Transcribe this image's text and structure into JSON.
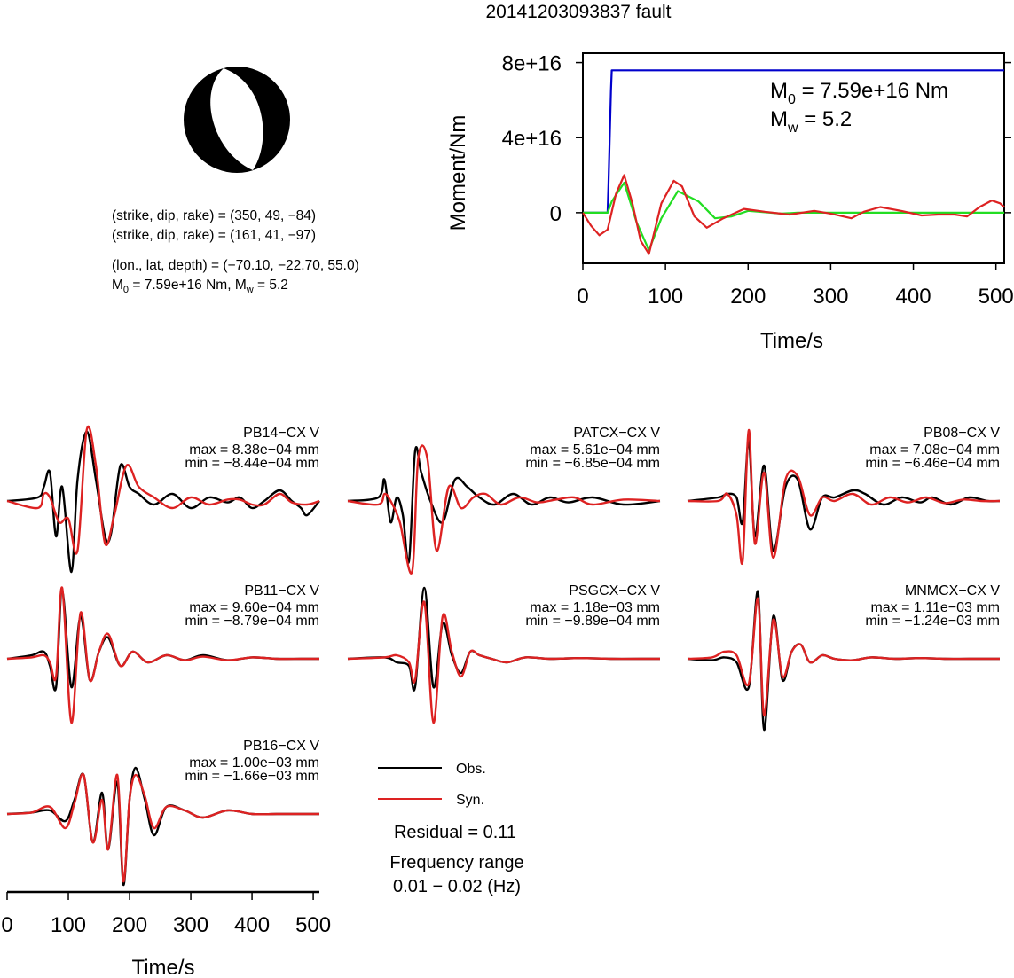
{
  "title": "20141203093837 fault",
  "mechanism": {
    "planes": [
      "(strike, dip, rake) = (350, 49, −84)",
      "(strike, dip, rake) = (161, 41, −97)"
    ],
    "location": "(lon., lat, depth) = (−70.10, −22.70, 55.0)",
    "m0_prefix": "M",
    "m0_sub": "0",
    "m0_value": " = 7.59e+16 Nm, M",
    "mw_sub": "w",
    "mw_value": " = 5.2"
  },
  "chart_data": [
    {
      "type": "line",
      "panel": "moment-rate",
      "xlabel": "Time/s",
      "ylabel": "Moment/Nm",
      "xlim": [
        0,
        510
      ],
      "ylim": [
        -2.7e+16,
        8.5e+16
      ],
      "xticks": [
        "0",
        "100",
        "200",
        "300",
        "400",
        "500"
      ],
      "yticks": [
        "0",
        "4e+16",
        "8e+16"
      ],
      "annotation": {
        "m0_base": "M",
        "m0_sub": "0",
        "m0_rest": " = 7.59e+16 Nm",
        "mw_base": "M",
        "mw_sub": "w",
        "mw_rest": " = 5.2"
      },
      "series": [
        {
          "color": "#0000cc",
          "x": [
            0,
            30,
            31,
            34,
            35,
            510
          ],
          "y": [
            0,
            0,
            1.5e+16,
            6.5e+16,
            7.59e+16,
            7.59e+16
          ]
        },
        {
          "color": "#22dd22",
          "x": [
            0,
            30,
            35,
            50,
            65,
            80,
            95,
            115,
            140,
            160,
            180,
            200,
            240,
            260,
            510
          ],
          "y": [
            0,
            0,
            6000000000000000.0,
            1.6e+16,
            -5000000000000000.0,
            -2e+16,
            -3000000000000000.0,
            1.15e+16,
            6000000000000000.0,
            -3000000000000000.0,
            -2000000000000000.0,
            1000000000000000.0,
            -500000000000000.0,
            0,
            0
          ]
        },
        {
          "color": "#dd2222",
          "x": [
            0,
            10,
            20,
            30,
            40,
            50,
            60,
            70,
            80,
            95,
            110,
            120,
            135,
            150,
            170,
            195,
            220,
            250,
            280,
            300,
            325,
            340,
            360,
            385,
            410,
            430,
            450,
            465,
            480,
            495,
            505,
            510
          ],
          "y": [
            0,
            -7000000000000000.0,
            -1.2e+16,
            -9000000000000000.0,
            1e+16,
            2e+16,
            5000000000000000.0,
            -1.5e+16,
            -2.2e+16,
            5000000000000000.0,
            1.7e+16,
            1.4e+16,
            -2000000000000000.0,
            -8000000000000000.0,
            -3000000000000000.0,
            2000000000000000.0,
            500000000000000.0,
            -1000000000000000.0,
            1000000000000000.0,
            -500000000000000.0,
            -3000000000000000.0,
            500000000000000.0,
            3000000000000000.0,
            1000000000000000.0,
            -1500000000000000.0,
            -1000000000000000.0,
            -1000000000000000.0,
            -2000000000000000.0,
            3000000000000000.0,
            6500000000000000.0,
            5000000000000000.0,
            3000000000000000.0
          ]
        }
      ]
    },
    {
      "type": "line",
      "panel": "waveforms",
      "xlabel": "Time/s",
      "xlim": [
        0,
        510
      ],
      "xticks": [
        "0",
        "100",
        "200",
        "300",
        "400",
        "500"
      ],
      "legend": {
        "obs": "Obs.",
        "syn": "Syn.",
        "obs_color": "#000000",
        "syn_color": "#dd2222"
      },
      "residual": "Residual = 0.11",
      "freq_label": "Frequency range",
      "freq_value": "0.01 − 0.02 (Hz)",
      "stations": [
        {
          "name": "PB14−CX V",
          "max": "max = 8.38e−04 mm",
          "min": "min = −8.44e−04 mm",
          "obs": {
            "x": [
              0,
              50,
              60,
              70,
              80,
              90,
              105,
              115,
              130,
              145,
              160,
              170,
              185,
              200,
              215,
              240,
              270,
              300,
              330,
              360,
              380,
              400,
              420,
              445,
              465,
              480,
              490,
              510
            ],
            "y": [
              0,
              0.05,
              0.2,
              0.4,
              -0.5,
              0.2,
              -1.0,
              0.3,
              0.98,
              0.3,
              -0.5,
              -0.45,
              0.5,
              0.2,
              0.1,
              -0.05,
              0.1,
              -0.1,
              0.05,
              -0.02,
              0.05,
              -0.1,
              0,
              0.15,
              0,
              -0.1,
              -0.2,
              0
            ]
          },
          "syn": {
            "x": [
              0,
              50,
              60,
              70,
              85,
              100,
              115,
              130,
              145,
              160,
              175,
              195,
              215,
              240,
              270,
              300,
              330,
              360,
              380,
              400,
              420,
              445,
              465,
              490,
              510
            ],
            "y": [
              0,
              -0.1,
              0.1,
              0.05,
              -0.3,
              -0.25,
              -0.7,
              1.0,
              0.5,
              -0.6,
              -0.2,
              0.5,
              0.2,
              0.05,
              -0.1,
              0.05,
              -0.05,
              0.02,
              0.02,
              -0.05,
              -0.05,
              0.1,
              -0.02,
              -0.05,
              0
            ]
          }
        },
        {
          "name": "PATCX−CX V",
          "max": "max = 5.61e−04 mm",
          "min": "min = −6.85e−04 mm",
          "obs": {
            "x": [
              0,
              50,
              60,
              70,
              80,
              90,
              100,
              110,
              120,
              135,
              155,
              175,
              195,
              215,
              240,
              270,
              300,
              330,
              360,
              400,
              450,
              510
            ],
            "y": [
              0,
              0.05,
              0.3,
              -0.3,
              0.05,
              -0.2,
              -0.85,
              0.7,
              0.4,
              0.0,
              -0.3,
              0.3,
              0.2,
              0.05,
              -0.05,
              0.1,
              -0.05,
              0.05,
              -0.02,
              0.05,
              -0.05,
              0
            ]
          },
          "syn": {
            "x": [
              0,
              50,
              60,
              70,
              85,
              105,
              115,
              130,
              145,
              165,
              185,
              205,
              225,
              250,
              280,
              310,
              340,
              370,
              400,
              450,
              510
            ],
            "y": [
              0,
              -0.05,
              0.1,
              0.0,
              -0.3,
              -1.0,
              0.6,
              0.6,
              -0.7,
              0.2,
              -0.1,
              0.05,
              0.1,
              -0.05,
              0.05,
              -0.02,
              0.02,
              0.05,
              -0.05,
              0.02,
              0
            ]
          }
        },
        {
          "name": "PB08−CX V",
          "max": "max = 7.08e−04 mm",
          "min": "min = −6.46e−04 mm",
          "obs": {
            "x": [
              0,
              50,
              65,
              80,
              90,
              100,
              110,
              125,
              140,
              160,
              180,
              200,
              220,
              240,
              270,
              290,
              320,
              350,
              380,
              400,
              430,
              460,
              490,
              510
            ],
            "y": [
              0,
              0.05,
              0.1,
              0.05,
              -0.3,
              0.85,
              -0.5,
              0.5,
              -0.7,
              0.2,
              0.3,
              -0.4,
              0.05,
              0.05,
              0.15,
              0.1,
              -0.05,
              0.05,
              -0.02,
              0.05,
              -0.05,
              0.05,
              0,
              0
            ]
          },
          "syn": {
            "x": [
              0,
              50,
              65,
              80,
              90,
              100,
              110,
              125,
              140,
              160,
              180,
              200,
              220,
              240,
              270,
              300,
              330,
              360,
              390,
              420,
              450,
              480,
              510
            ],
            "y": [
              0,
              0,
              0.1,
              -0.2,
              -0.85,
              1.0,
              -0.6,
              0.4,
              -0.8,
              0.3,
              0.35,
              -0.2,
              0.05,
              0,
              0.1,
              -0.05,
              0.05,
              -0.02,
              0.05,
              -0.03,
              0.02,
              0,
              0
            ]
          }
        },
        {
          "name": "PB11−CX V",
          "max": "max = 9.60e−04 mm",
          "min": "min = −8.79e−04 mm",
          "obs": {
            "x": [
              0,
              40,
              60,
              70,
              80,
              90,
              105,
              120,
              135,
              150,
              165,
              185,
              205,
              230,
              260,
              290,
              320,
              360,
              400,
              440,
              480,
              510
            ],
            "y": [
              0,
              0.05,
              0.1,
              -0.1,
              -0.4,
              0.95,
              -0.4,
              0.6,
              -0.3,
              0.1,
              0.3,
              -0.1,
              0.1,
              -0.05,
              0.05,
              -0.02,
              0.05,
              -0.02,
              0.02,
              0,
              0,
              0
            ]
          },
          "syn": {
            "x": [
              0,
              40,
              60,
              70,
              80,
              90,
              105,
              120,
              135,
              150,
              165,
              185,
              205,
              230,
              260,
              290,
              320,
              360,
              400,
              440,
              480,
              510
            ],
            "y": [
              0,
              0.02,
              0.05,
              -0.05,
              -0.25,
              1.0,
              -0.9,
              0.65,
              -0.3,
              0.1,
              0.35,
              -0.1,
              0.1,
              -0.05,
              0.05,
              -0.02,
              0.03,
              -0.02,
              0.02,
              0,
              0,
              0
            ]
          }
        },
        {
          "name": "PSGCX−CX V",
          "max": "max = 1.18e−03 mm",
          "min": "min = −9.89e−04 mm",
          "obs": {
            "x": [
              0,
              60,
              80,
              100,
              110,
              125,
              140,
              155,
              170,
              185,
              200,
              215,
              235,
              260,
              290,
              330,
              380,
              430,
              480,
              510
            ],
            "y": [
              0,
              0.02,
              -0.05,
              -0.1,
              -0.4,
              1.0,
              -0.4,
              0.5,
              0.05,
              -0.2,
              0.1,
              0.05,
              0,
              -0.05,
              0.02,
              0,
              0.01,
              0,
              0,
              0
            ]
          },
          "syn": {
            "x": [
              0,
              60,
              80,
              100,
              110,
              125,
              140,
              155,
              170,
              185,
              200,
              215,
              235,
              260,
              290,
              330,
              380,
              430,
              480,
              510
            ],
            "y": [
              0,
              0.02,
              0.05,
              -0.05,
              -0.3,
              0.8,
              -0.9,
              0.6,
              0.1,
              -0.25,
              0.1,
              0.05,
              0,
              -0.05,
              0.02,
              0,
              0.01,
              0,
              0,
              0
            ]
          }
        },
        {
          "name": "MNMCX−CX V",
          "max": "max = 1.11e−03 mm",
          "min": "min = −1.24e−03 mm",
          "obs": {
            "x": [
              0,
              40,
              60,
              80,
              100,
              115,
              125,
              140,
              155,
              170,
              185,
              200,
              220,
              240,
              270,
              300,
              340,
              380,
              420,
              460,
              510
            ],
            "y": [
              0,
              -0.02,
              0.02,
              -0.05,
              -0.4,
              0.95,
              -1.0,
              0.6,
              -0.3,
              0.1,
              0.2,
              -0.05,
              0.05,
              0,
              -0.02,
              0.02,
              0,
              0.01,
              0,
              0,
              0
            ]
          },
          "syn": {
            "x": [
              0,
              40,
              60,
              80,
              100,
              115,
              125,
              140,
              155,
              170,
              185,
              200,
              220,
              240,
              270,
              300,
              340,
              380,
              420,
              460,
              510
            ],
            "y": [
              0,
              0.02,
              0.1,
              0.05,
              -0.35,
              0.85,
              -0.8,
              0.55,
              -0.25,
              0.1,
              0.2,
              -0.05,
              0.05,
              0,
              -0.02,
              0.02,
              0,
              0.01,
              0,
              0,
              0
            ]
          }
        },
        {
          "name": "PB16−CX V",
          "max": "max = 1.00e−03 mm",
          "min": "min = −1.66e−03 mm",
          "obs": {
            "x": [
              0,
              40,
              70,
              95,
              110,
              125,
              140,
              155,
              165,
              180,
              190,
              200,
              210,
              225,
              240,
              260,
              290,
              320,
              360,
              400,
              440,
              480,
              510
            ],
            "y": [
              0,
              0.02,
              0.05,
              -0.1,
              0.2,
              0.55,
              -0.4,
              0.3,
              -0.5,
              0.45,
              -1.0,
              0.2,
              0.65,
              0.2,
              -0.3,
              0.1,
              0.05,
              -0.05,
              0.05,
              0,
              0,
              0,
              0
            ]
          },
          "syn": {
            "x": [
              0,
              40,
              70,
              95,
              110,
              125,
              140,
              155,
              165,
              180,
              190,
              200,
              210,
              225,
              240,
              260,
              290,
              320,
              360,
              400,
              440,
              480,
              510
            ],
            "y": [
              0,
              0.02,
              0.1,
              -0.2,
              0.15,
              0.55,
              -0.4,
              0.2,
              -0.5,
              0.55,
              -0.95,
              0.2,
              0.55,
              0.25,
              -0.2,
              0.1,
              0.05,
              -0.05,
              0.05,
              0,
              0,
              0,
              0
            ]
          }
        }
      ]
    }
  ]
}
